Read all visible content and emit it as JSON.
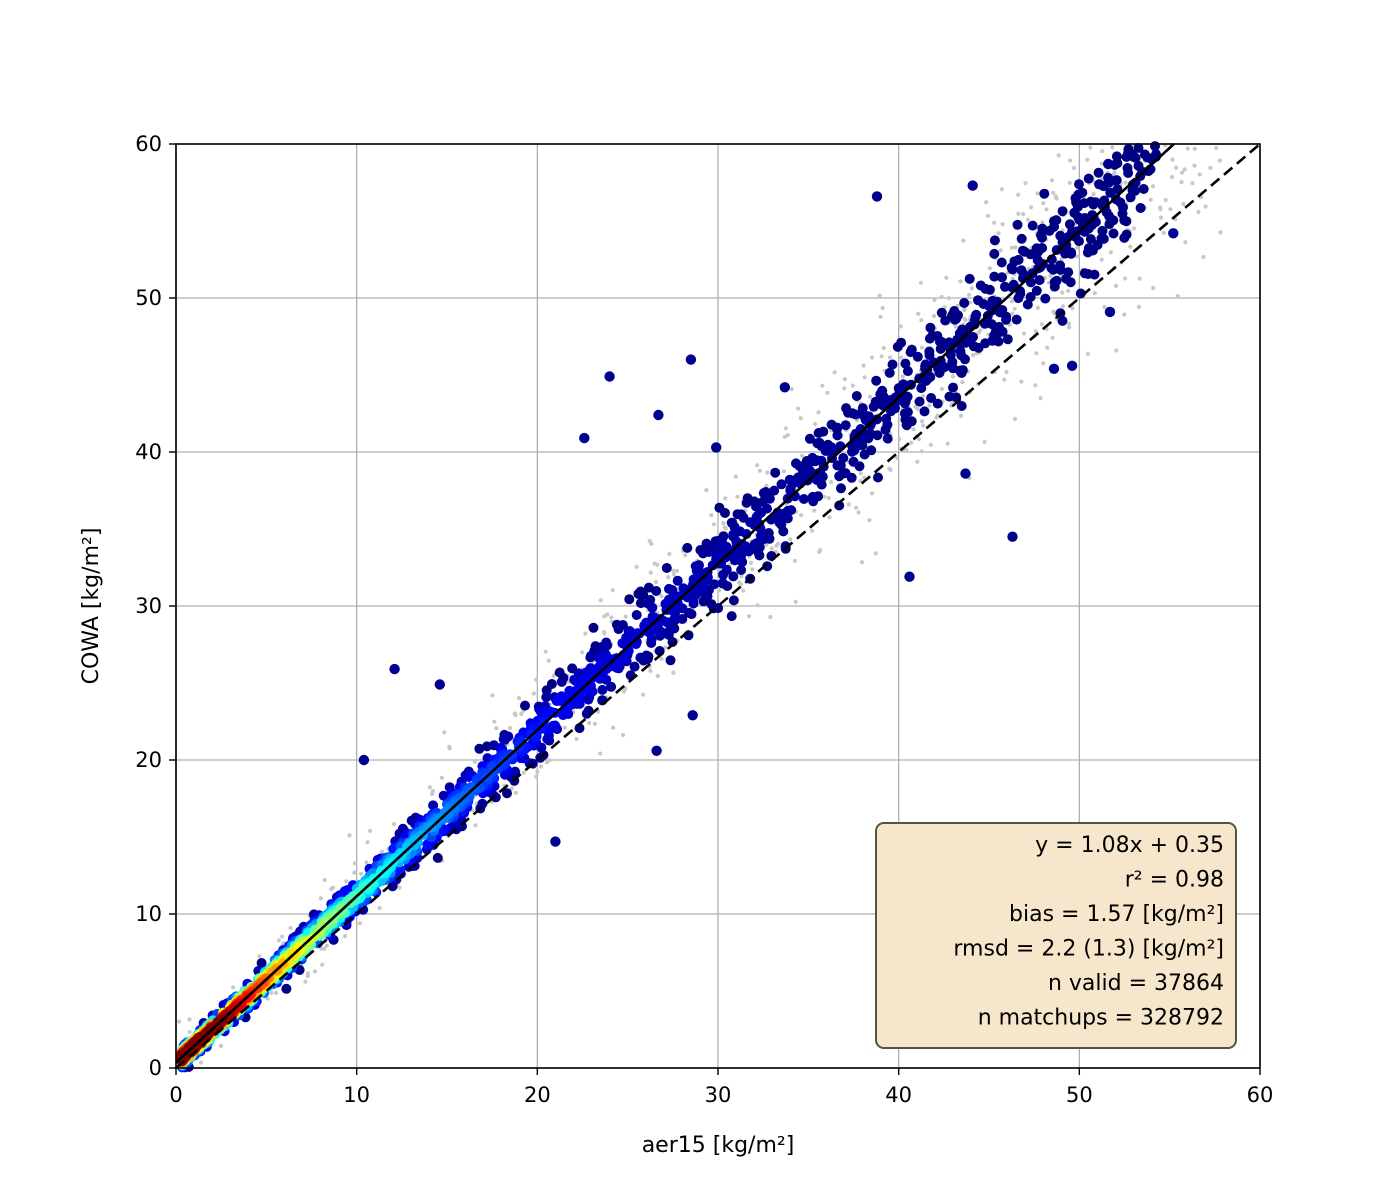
{
  "chart_data": {
    "type": "scatter",
    "xlabel": "aer15 [kg/m²]",
    "ylabel": "COWA [kg/m²]",
    "xlim": [
      0,
      60
    ],
    "ylim": [
      0,
      60
    ],
    "x_ticks": [
      "0",
      "10",
      "20",
      "30",
      "40",
      "50",
      "60"
    ],
    "y_ticks": [
      "0",
      "10",
      "20",
      "30",
      "40",
      "50",
      "60"
    ],
    "grid": true,
    "colormap": "jet",
    "colors": {
      "background_points": "#c8c8c8",
      "low_density": "#00008f",
      "high_density": "#cc0000",
      "grid": "#b0b0b0",
      "stats_box_fill": "#f6e6cb",
      "stats_box_edge": "#5a5048"
    },
    "fit_line": {
      "slope": 1.08,
      "intercept": 0.35,
      "style": "solid"
    },
    "identity_line": {
      "slope": 1.0,
      "intercept": 0.0,
      "style": "dashed"
    },
    "stats_legend": {
      "placement": "bottom-right",
      "lines": [
        "y = 1.08x + 0.35",
        "r² = 0.98",
        "bias = 1.57 [kg/m²]",
        "rmsd = 2.2 (1.3) [kg/m²]",
        "n valid = 37864",
        "n matchups = 328792"
      ]
    },
    "n_valid": 37864,
    "n_matchups": 328792,
    "notable_points": [
      {
        "x": 38.8,
        "y": 56.6
      },
      {
        "x": 44.1,
        "y": 57.3
      },
      {
        "x": 51.6,
        "y": 58.7
      },
      {
        "x": 55.2,
        "y": 54.2
      },
      {
        "x": 24.0,
        "y": 44.9
      },
      {
        "x": 28.5,
        "y": 46.0
      },
      {
        "x": 26.7,
        "y": 42.4
      },
      {
        "x": 22.6,
        "y": 40.9
      },
      {
        "x": 29.9,
        "y": 40.3
      },
      {
        "x": 33.7,
        "y": 44.2
      },
      {
        "x": 46.3,
        "y": 34.5
      },
      {
        "x": 40.6,
        "y": 31.9
      },
      {
        "x": 10.4,
        "y": 20.0
      },
      {
        "x": 21.0,
        "y": 14.7
      },
      {
        "x": 12.1,
        "y": 25.9
      },
      {
        "x": 14.6,
        "y": 24.9
      },
      {
        "x": 26.6,
        "y": 20.6
      },
      {
        "x": 28.6,
        "y": 22.9
      },
      {
        "x": 49.6,
        "y": 45.6
      },
      {
        "x": 48.6,
        "y": 45.4
      },
      {
        "x": 51.7,
        "y": 49.1
      },
      {
        "x": 43.7,
        "y": 38.6
      },
      {
        "x": 45.2,
        "y": 49.8
      },
      {
        "x": 50.2,
        "y": 54.6
      }
    ]
  }
}
